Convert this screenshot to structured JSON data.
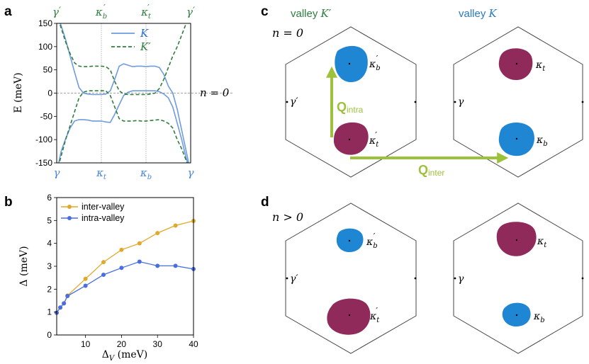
{
  "panel_labels": {
    "a": "a",
    "b": "b",
    "c": "c",
    "d": "d"
  },
  "colors": {
    "K": "#6f9be0",
    "Kprime": "#2f7d3f",
    "inter": "#e0a92a",
    "intra": "#4a6ee0",
    "blue_pocket": "#1e86d2",
    "red_pocket": "#8f2a5a",
    "arrow": "#9cc13a",
    "hexagon": "#444444"
  },
  "chart_data": [
    {
      "id": "a",
      "type": "line",
      "title": "",
      "xlabel": "",
      "ylabel": "E (meV)",
      "xlim": [
        0,
        3
      ],
      "ylim": [
        -150,
        150
      ],
      "yticks": [
        -150,
        -100,
        -50,
        0,
        50,
        100,
        150
      ],
      "top_ticks": [
        {
          "x": 0,
          "sym": "γ",
          "prime": "′",
          "sub": ""
        },
        {
          "x": 1,
          "sym": "κ",
          "prime": "′",
          "sub": "b"
        },
        {
          "x": 2,
          "sym": "κ",
          "prime": "′",
          "sub": "t"
        },
        {
          "x": 3,
          "sym": "γ",
          "prime": "′",
          "sub": ""
        }
      ],
      "bottom_ticks": [
        {
          "x": 0,
          "sym": "γ",
          "sub": ""
        },
        {
          "x": 1,
          "sym": "κ",
          "sub": "t"
        },
        {
          "x": 2,
          "sym": "κ",
          "sub": "b"
        },
        {
          "x": 3,
          "sym": "γ",
          "sub": ""
        }
      ],
      "annotation": "n = 0",
      "legend": {
        "placement": "top-center"
      },
      "series": [
        {
          "name": "K",
          "style": "solid",
          "band": "K_upper",
          "x": [
            0,
            0.1,
            0.2,
            0.3,
            0.4,
            0.5,
            0.6,
            0.7,
            0.8,
            0.9,
            1.0,
            1.1,
            1.2,
            1.3,
            1.4,
            1.5,
            1.6,
            1.7,
            1.8,
            1.9,
            2.0,
            2.1,
            2.2,
            2.3,
            2.4,
            2.5,
            2.6,
            2.7,
            2.8,
            2.9,
            3.0
          ],
          "y": [
            170,
            145,
            115,
            80,
            45,
            12,
            0,
            -2,
            -3,
            -3,
            -3,
            -2,
            5,
            30,
            58,
            63,
            60,
            57,
            58,
            58,
            57,
            58,
            58,
            55,
            40,
            15,
            0,
            -35,
            -80,
            -125,
            -170
          ]
        },
        {
          "name": "K",
          "style": "solid",
          "band": "K_lower",
          "x": [
            0,
            0.1,
            0.2,
            0.3,
            0.4,
            0.5,
            0.6,
            0.7,
            0.8,
            0.9,
            1.0,
            1.1,
            1.2,
            1.3,
            1.4,
            1.5,
            1.6,
            1.7,
            1.8,
            1.9,
            2.0,
            2.1,
            2.2,
            2.3,
            2.4,
            2.5,
            2.6,
            2.7,
            2.8,
            2.9,
            3.0
          ],
          "y": [
            -170,
            -125,
            -98,
            -75,
            -60,
            -57,
            -57,
            -58,
            -60,
            -60,
            -60,
            -62,
            -63,
            -45,
            -25,
            -5,
            2,
            5,
            5,
            5,
            5,
            5,
            5,
            3,
            -2,
            -10,
            -30,
            -65,
            -100,
            -140,
            -170
          ]
        },
        {
          "name": "K′",
          "style": "dashed",
          "band": "Kp_upper",
          "x": [
            0,
            0.1,
            0.2,
            0.3,
            0.4,
            0.5,
            0.6,
            0.7,
            0.8,
            0.9,
            1.0,
            1.1,
            1.2,
            1.3,
            1.4,
            1.5,
            1.6,
            1.7,
            1.8,
            1.9,
            2.0,
            2.1,
            2.2,
            2.3,
            2.4,
            2.5,
            2.6,
            2.7,
            2.8,
            2.9,
            3.0
          ],
          "y": [
            170,
            140,
            110,
            85,
            65,
            58,
            57,
            57,
            58,
            58,
            58,
            57,
            50,
            25,
            5,
            -2,
            -3,
            -3,
            -3,
            -3,
            -3,
            -2,
            0,
            10,
            30,
            55,
            80,
            100,
            125,
            150,
            170
          ]
        },
        {
          "name": "K′",
          "style": "dashed",
          "band": "Kp_lower",
          "x": [
            0,
            0.1,
            0.2,
            0.3,
            0.4,
            0.5,
            0.6,
            0.7,
            0.8,
            0.9,
            1.0,
            1.1,
            1.2,
            1.3,
            1.4,
            1.5,
            1.6,
            1.7,
            1.8,
            1.9,
            2.0,
            2.1,
            2.2,
            2.3,
            2.4,
            2.5,
            2.6,
            2.7,
            2.8,
            2.9,
            3.0
          ],
          "y": [
            -170,
            -135,
            -100,
            -70,
            -40,
            -10,
            2,
            5,
            5,
            5,
            5,
            5,
            -5,
            -30,
            -55,
            -60,
            -60,
            -60,
            -59,
            -60,
            -60,
            -59,
            -58,
            -57,
            -60,
            -65,
            -75,
            -100,
            -120,
            -145,
            -170
          ]
        }
      ],
      "legend_entries": [
        {
          "name": "K",
          "style": "solid"
        },
        {
          "name": "K′",
          "style": "dashed"
        }
      ]
    },
    {
      "id": "b",
      "type": "line",
      "title": "",
      "xlabel": "Δ_V (meV)",
      "ylabel": "Δ (meV)",
      "xlim": [
        2,
        40
      ],
      "ylim": [
        0,
        6
      ],
      "xticks": [
        10,
        20,
        30,
        40
      ],
      "yticks": [
        0,
        1,
        2,
        3,
        4,
        5,
        6
      ],
      "legend": {
        "placement": "top-left"
      },
      "series": [
        {
          "name": "inter-valley",
          "x": [
            2,
            3,
            4,
            5,
            10,
            15,
            20,
            25,
            30,
            35,
            40
          ],
          "y": [
            0.97,
            1.2,
            1.38,
            1.72,
            2.45,
            3.18,
            3.72,
            4.0,
            4.45,
            4.78,
            4.98
          ]
        },
        {
          "name": "intra-valley",
          "x": [
            2,
            3,
            4,
            5,
            10,
            15,
            20,
            25,
            30,
            35,
            40
          ],
          "y": [
            0.97,
            1.2,
            1.38,
            1.7,
            2.15,
            2.63,
            2.93,
            3.2,
            3.02,
            3.02,
            2.88
          ]
        }
      ]
    }
  ],
  "panel_c": {
    "valley_Kp_label": "valley ",
    "valley_Kp_sym": "K′",
    "valley_K_label": "valley ",
    "valley_K_sym": "K",
    "n_label": "n = 0",
    "left_hex": {
      "gamma": "γ′",
      "top_pocket": {
        "sym": "κ",
        "sub": "b",
        "prime": "′"
      },
      "bottom_pocket": {
        "sym": "κ",
        "sub": "t",
        "prime": "′"
      }
    },
    "right_hex": {
      "gamma": "γ",
      "top_pocket": {
        "sym": "κ",
        "sub": "t",
        "prime": ""
      },
      "bottom_pocket": {
        "sym": "κ",
        "sub": "b",
        "prime": ""
      }
    },
    "q_intra": {
      "main": "Q",
      "sub": "intra"
    },
    "q_inter": {
      "main": "Q",
      "sub": "inter"
    }
  },
  "panel_d": {
    "n_label": "n > 0",
    "left_hex": {
      "gamma": "γ′",
      "top_pocket": {
        "sym": "κ",
        "sub": "b",
        "prime": "′"
      },
      "bottom_pocket": {
        "sym": "κ",
        "sub": "t",
        "prime": "′"
      }
    },
    "right_hex": {
      "gamma": "γ",
      "top_pocket": {
        "sym": "κ",
        "sub": "t",
        "prime": ""
      },
      "bottom_pocket": {
        "sym": "κ",
        "sub": "b",
        "prime": ""
      }
    }
  }
}
